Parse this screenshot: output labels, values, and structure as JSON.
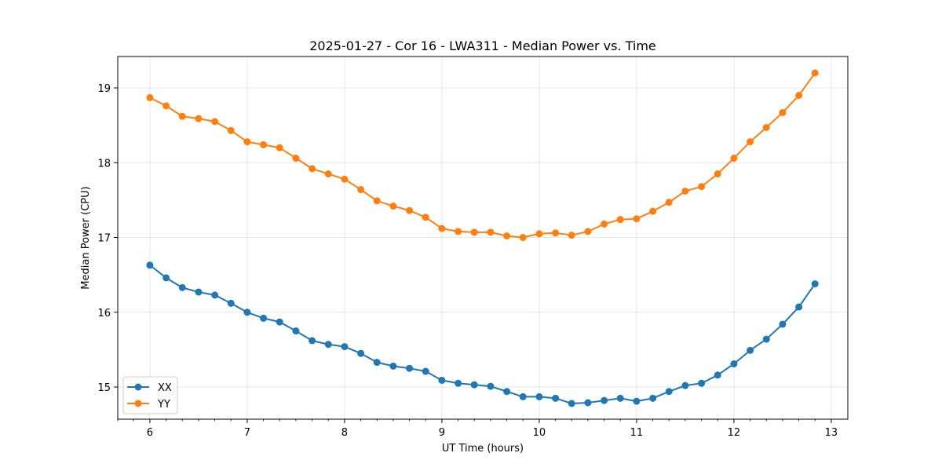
{
  "chart_data": {
    "type": "line",
    "title": "2025-01-27 - Cor 16 - LWA311 - Median Power vs. Time",
    "xlabel": "UT Time (hours)",
    "ylabel": "Median Power (CPU)",
    "xlim": [
      5.67,
      13.17
    ],
    "ylim": [
      14.57,
      19.42
    ],
    "xticks": [
      6,
      7,
      8,
      9,
      10,
      11,
      12,
      13
    ],
    "yticks": [
      15,
      16,
      17,
      18,
      19
    ],
    "grid": true,
    "legend_position": "lower-left",
    "x": [
      6.0,
      6.167,
      6.333,
      6.5,
      6.667,
      6.833,
      7.0,
      7.167,
      7.333,
      7.5,
      7.667,
      7.833,
      8.0,
      8.167,
      8.333,
      8.5,
      8.667,
      8.833,
      9.0,
      9.167,
      9.333,
      9.5,
      9.667,
      9.833,
      10.0,
      10.167,
      10.333,
      10.5,
      10.667,
      10.833,
      11.0,
      11.167,
      11.333,
      11.5,
      11.667,
      11.833,
      12.0,
      12.167,
      12.333,
      12.5,
      12.667,
      12.833
    ],
    "series": [
      {
        "name": "XX",
        "color": "#1f77b4",
        "values": [
          16.63,
          16.46,
          16.33,
          16.27,
          16.23,
          16.12,
          16.0,
          15.92,
          15.87,
          15.75,
          15.62,
          15.57,
          15.54,
          15.45,
          15.33,
          15.28,
          15.25,
          15.21,
          15.09,
          15.05,
          15.03,
          15.01,
          14.94,
          14.87,
          14.87,
          14.85,
          14.78,
          14.79,
          14.82,
          14.85,
          14.81,
          14.85,
          14.94,
          15.02,
          15.05,
          15.16,
          15.31,
          15.49,
          15.64,
          15.84,
          16.07,
          16.38
        ]
      },
      {
        "name": "YY",
        "color": "#ff7f0e",
        "values": [
          18.87,
          18.76,
          18.62,
          18.59,
          18.55,
          18.43,
          18.28,
          18.24,
          18.2,
          18.06,
          17.92,
          17.85,
          17.78,
          17.64,
          17.49,
          17.42,
          17.36,
          17.27,
          17.12,
          17.08,
          17.07,
          17.07,
          17.02,
          17.0,
          17.05,
          17.06,
          17.03,
          17.08,
          17.18,
          17.24,
          17.25,
          17.35,
          17.47,
          17.62,
          17.68,
          17.85,
          18.06,
          18.28,
          18.47,
          18.67,
          18.9,
          19.2
        ]
      }
    ]
  }
}
